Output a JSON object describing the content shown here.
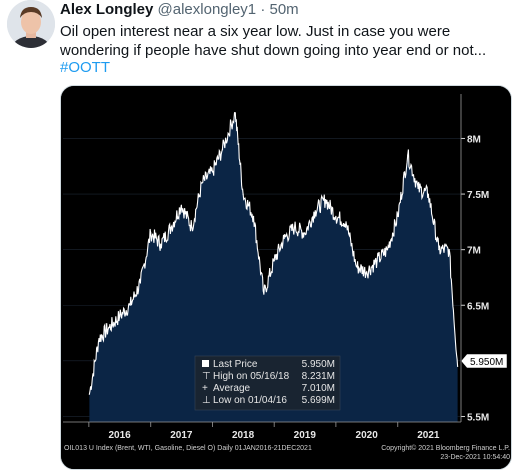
{
  "tweet": {
    "author_name": "Alex Longley",
    "handle": "@alexlongley1",
    "separator": "·",
    "time": "50m",
    "text": "Oil open interest near a six year low. Just in case you were wondering if people have shut down going into year end or not...",
    "hashtag": "#OOTT"
  },
  "chart_data": {
    "type": "line",
    "x_labels": [
      "2016",
      "2017",
      "2018",
      "2019",
      "2020",
      "2021"
    ],
    "y_ticks": [
      "8M",
      "7.5M",
      "7M",
      "6.5M",
      "6M",
      "5.5M"
    ],
    "ylim": [
      5.45,
      8.4
    ],
    "last_value_label": "5.950M",
    "series": [
      {
        "x": [
          "2016-01-04",
          "2016-03-01",
          "2016-05-01",
          "2016-07-01",
          "2016-09-01",
          "2016-11-01",
          "2017-01-01",
          "2017-03-01",
          "2017-05-01",
          "2017-07-01",
          "2017-09-01",
          "2017-11-01",
          "2018-01-01",
          "2018-03-01",
          "2018-05-16",
          "2018-07-01",
          "2018-09-01",
          "2018-11-01",
          "2019-01-01",
          "2019-03-01",
          "2019-05-01",
          "2019-07-01",
          "2019-09-01",
          "2019-11-01",
          "2020-01-01",
          "2020-03-01",
          "2020-05-01",
          "2020-07-01",
          "2020-09-01",
          "2020-11-01",
          "2021-01-01",
          "2021-03-01",
          "2021-05-01",
          "2021-07-01",
          "2021-09-01",
          "2021-11-01",
          "2021-12-21"
        ],
        "values": [
          5.7,
          6.2,
          6.3,
          6.4,
          6.5,
          6.7,
          7.15,
          7.05,
          7.2,
          7.4,
          7.2,
          7.6,
          7.7,
          7.9,
          8.23,
          7.5,
          7.3,
          6.6,
          6.9,
          7.1,
          7.2,
          7.15,
          7.35,
          7.45,
          7.3,
          7.25,
          6.85,
          6.8,
          6.9,
          7.0,
          7.3,
          7.85,
          7.55,
          7.5,
          7.0,
          7.0,
          5.95
        ]
      }
    ],
    "legend": [
      {
        "label": "Last Price",
        "value": "5.950M"
      },
      {
        "label": "High on 05/16/18",
        "value": "8.231M"
      },
      {
        "label": "Average",
        "value": "7.010M"
      },
      {
        "label": "Low on 01/04/16",
        "value": "5.699M"
      }
    ],
    "footer_left": "OIL013 U Index (Brent, WTI, Gasoline, Diesel O)  Daily 01JAN2016-21DEC2021",
    "footer_right_1": "Copyright© 2021 Bloomberg Finance L.P.",
    "footer_right_2": "23-Dec-2021 10:54:40",
    "colors": {
      "line": "#ffffff",
      "fill": "#0b2545",
      "background": "#000000"
    }
  }
}
